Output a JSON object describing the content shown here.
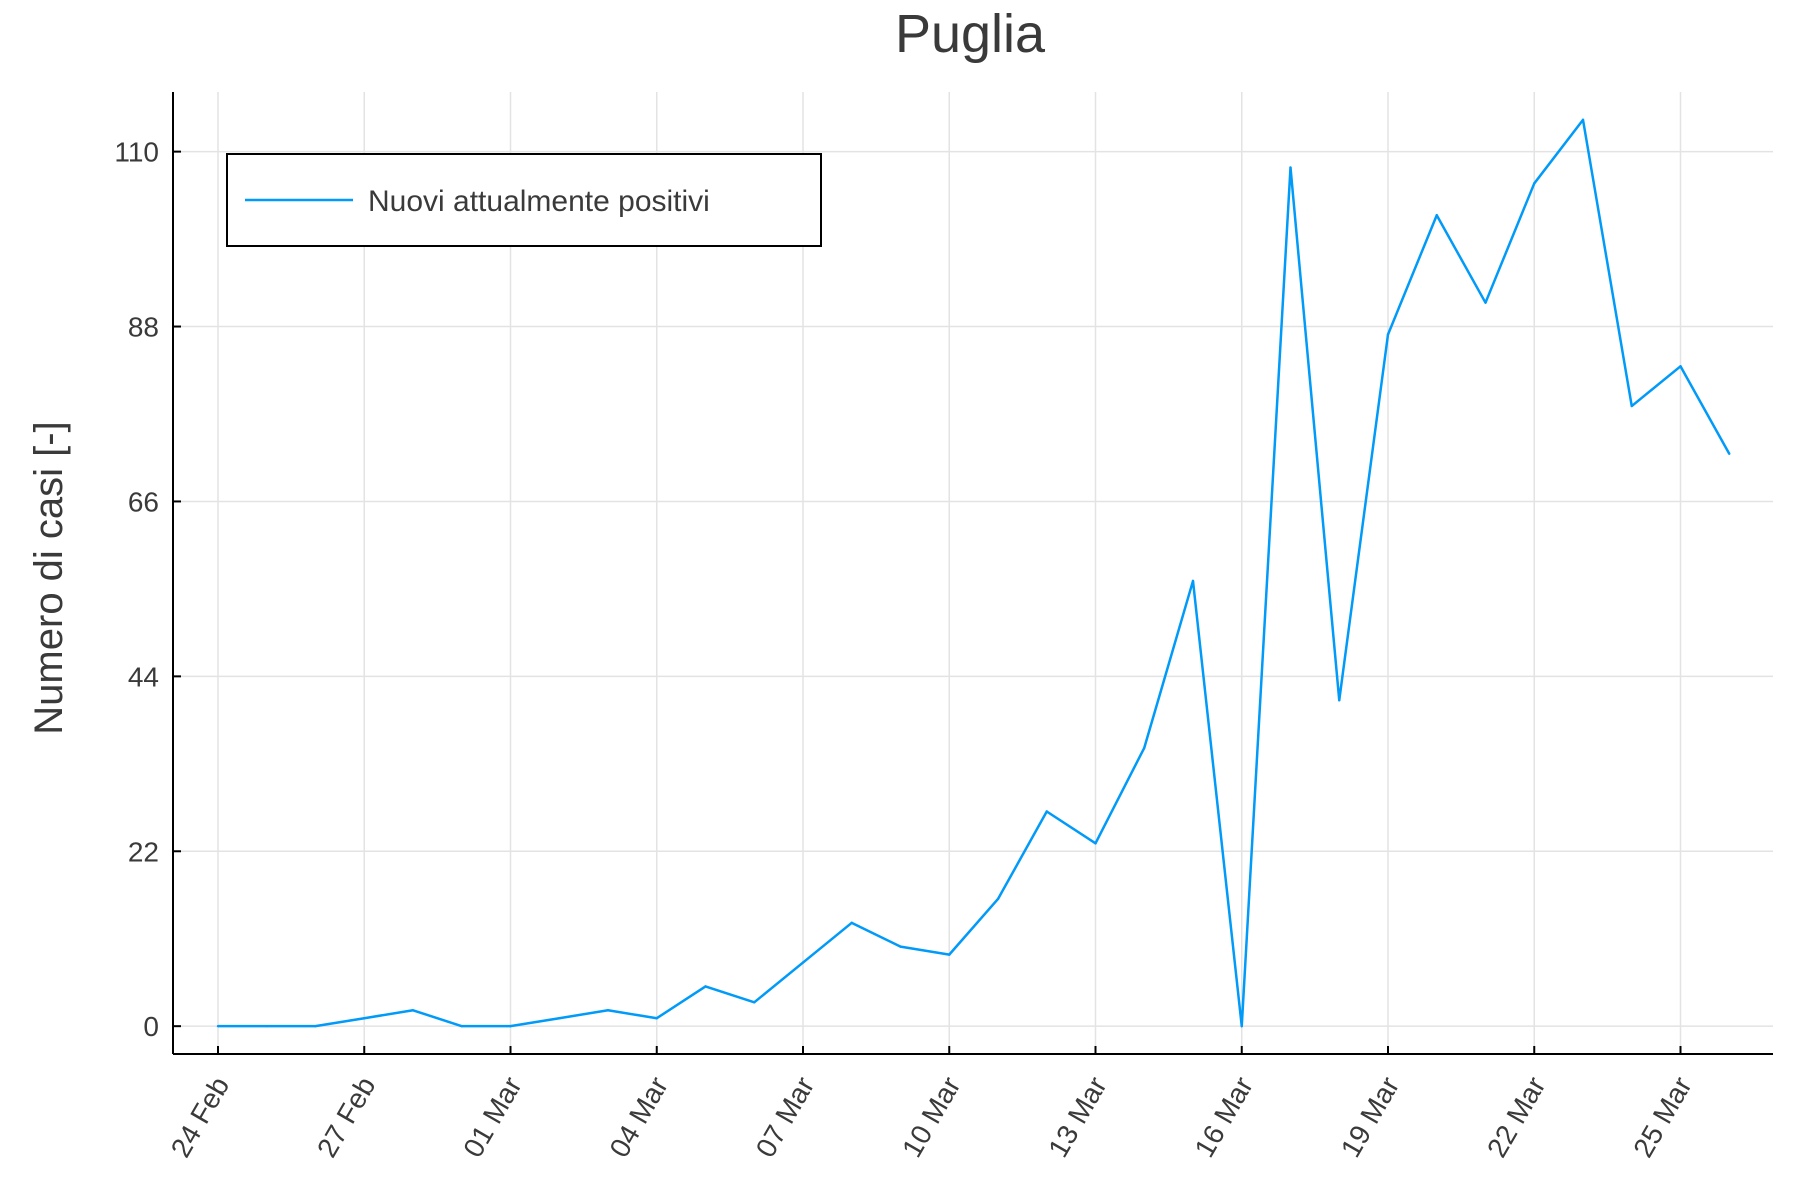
{
  "chart_data": {
    "type": "line",
    "title": "Puglia",
    "xlabel": "",
    "ylabel": "Numero di casi [-]",
    "x": [
      "24 Feb",
      "25 Feb",
      "26 Feb",
      "27 Feb",
      "28 Feb",
      "29 Feb",
      "01 Mar",
      "02 Mar",
      "03 Mar",
      "04 Mar",
      "05 Mar",
      "06 Mar",
      "07 Mar",
      "08 Mar",
      "09 Mar",
      "10 Mar",
      "11 Mar",
      "12 Mar",
      "13 Mar",
      "14 Mar",
      "15 Mar",
      "16 Mar",
      "17 Mar",
      "18 Mar",
      "19 Mar",
      "20 Mar",
      "21 Mar",
      "22 Mar",
      "23 Mar",
      "24 Mar",
      "25 Mar",
      "26 Mar"
    ],
    "x_ticks": [
      "24 Feb",
      "27 Feb",
      "01 Mar",
      "04 Mar",
      "07 Mar",
      "10 Mar",
      "13 Mar",
      "16 Mar",
      "19 Mar",
      "22 Mar",
      "25 Mar"
    ],
    "y_ticks": [
      0,
      22,
      44,
      66,
      88,
      110
    ],
    "ylim": [
      -3.5,
      117.5
    ],
    "grid": true,
    "legend_position": "top-left",
    "series": [
      {
        "name": "Nuovi attualmente positivi",
        "color": "#009af9",
        "values": [
          0,
          0,
          0,
          1,
          2,
          0,
          0,
          1,
          2,
          1,
          5,
          3,
          8,
          13,
          10,
          9,
          16,
          27,
          23,
          35,
          56,
          0,
          108,
          41,
          87,
          102,
          91,
          106,
          114,
          78,
          83,
          72
        ]
      }
    ]
  }
}
